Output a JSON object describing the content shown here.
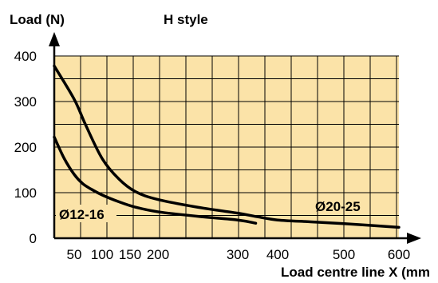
{
  "chart_data": {
    "type": "line",
    "title": "H style",
    "ylabel": "Load (N)",
    "xlabel": "Load centre line X (mm",
    "ylim": [
      0,
      400
    ],
    "x_ticks": [
      {
        "value": 50,
        "label": "50"
      },
      {
        "value": 100,
        "label": "100"
      },
      {
        "value": 150,
        "label": "150"
      },
      {
        "value": 200,
        "label": "200"
      },
      {
        "value": 300,
        "label": "300"
      },
      {
        "value": 400,
        "label": "400"
      },
      {
        "value": 500,
        "label": "500"
      },
      {
        "value": 600,
        "label": "600"
      }
    ],
    "y_ticks": [
      0,
      100,
      200,
      300,
      400
    ],
    "grid": true,
    "colors": {
      "plot_bg": "#fbe3a8",
      "grid": "#000000",
      "line": "#000000"
    },
    "series": [
      {
        "name": "Ø20-25",
        "x": [
          30,
          50,
          70,
          100,
          130,
          160,
          200,
          250,
          300,
          350,
          400,
          450,
          500,
          550,
          600
        ],
        "y": [
          378,
          305,
          250,
          175,
          130,
          102,
          85,
          68,
          55,
          47,
          40,
          36,
          32,
          28,
          24
        ]
      },
      {
        "name": "Ø12-16",
        "x": [
          30,
          40,
          50,
          65,
          80,
          100,
          130,
          160,
          200,
          250,
          300,
          345
        ],
        "y": [
          222,
          175,
          140,
          120,
          108,
          95,
          80,
          68,
          58,
          48,
          40,
          33
        ]
      }
    ]
  }
}
